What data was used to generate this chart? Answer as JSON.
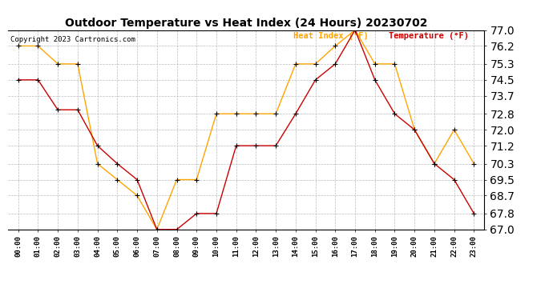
{
  "title": "Outdoor Temperature vs Heat Index (24 Hours) 20230702",
  "copyright": "Copyright 2023 Cartronics.com",
  "legend_heat": "Heat Index (°F)",
  "legend_temp": "Temperature (°F)",
  "hours": [
    "00:00",
    "01:00",
    "02:00",
    "03:00",
    "04:00",
    "05:00",
    "06:00",
    "07:00",
    "08:00",
    "09:00",
    "10:00",
    "11:00",
    "12:00",
    "13:00",
    "14:00",
    "15:00",
    "16:00",
    "17:00",
    "18:00",
    "19:00",
    "20:00",
    "21:00",
    "22:00",
    "23:00"
  ],
  "temperature": [
    74.5,
    74.5,
    73.0,
    73.0,
    71.2,
    70.3,
    69.5,
    67.0,
    67.0,
    67.8,
    67.8,
    71.2,
    71.2,
    71.2,
    72.8,
    74.5,
    75.3,
    77.0,
    74.5,
    72.8,
    72.0,
    70.3,
    69.5,
    67.8
  ],
  "heat_index": [
    76.2,
    76.2,
    75.3,
    75.3,
    70.3,
    69.5,
    68.7,
    67.0,
    69.5,
    69.5,
    72.8,
    72.8,
    72.8,
    72.8,
    75.3,
    75.3,
    76.2,
    77.0,
    75.3,
    75.3,
    72.0,
    70.3,
    72.0,
    70.3
  ],
  "ylim_min": 67.0,
  "ylim_max": 77.0,
  "yticks": [
    67.0,
    67.8,
    68.7,
    69.5,
    70.3,
    71.2,
    72.0,
    72.8,
    73.7,
    74.5,
    75.3,
    76.2,
    77.0
  ],
  "color_heat": "#FFA500",
  "color_temp": "#CC0000",
  "color_marker": "#000000",
  "bg_color": "#FFFFFF",
  "grid_color": "#BBBBBB",
  "title_fontsize": 10,
  "copyright_fontsize": 6.5,
  "legend_fontsize": 7.5,
  "tick_fontsize": 6.5
}
